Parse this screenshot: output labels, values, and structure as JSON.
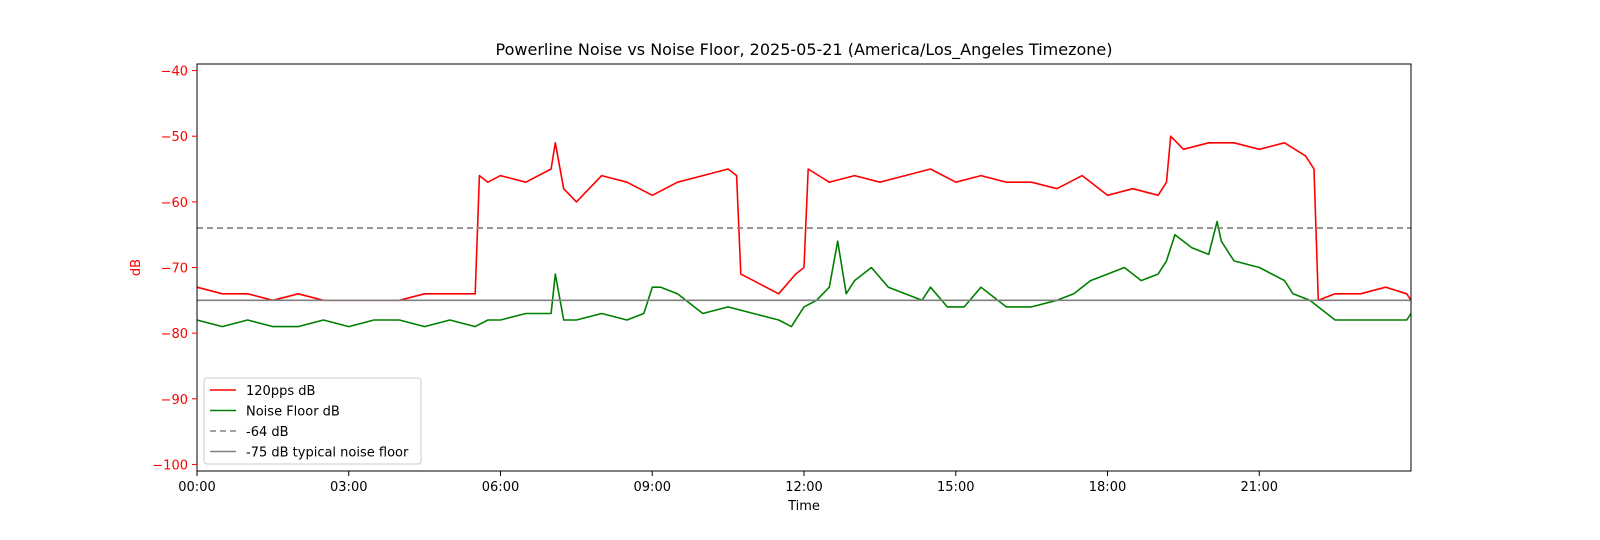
{
  "chart_data": {
    "type": "line",
    "title": "Powerline Noise vs Noise Floor, 2025-05-21 (America/Los_Angeles Timezone)",
    "xlabel": "Time",
    "ylabel": "dB",
    "xlim": [
      "00:00",
      "24:00"
    ],
    "ylim": [
      -101,
      -39
    ],
    "x_ticks": [
      "00:00",
      "03:00",
      "06:00",
      "09:00",
      "12:00",
      "15:00",
      "18:00",
      "21:00"
    ],
    "y_ticks": [
      -40,
      -50,
      -60,
      -70,
      -80,
      -90,
      -100
    ],
    "grid": false,
    "legend_position": "lower-left",
    "series": [
      {
        "name": "120pps dB",
        "color": "#ff0000",
        "style": "solid",
        "x": [
          "00:00",
          "00:30",
          "01:00",
          "01:30",
          "02:00",
          "02:30",
          "03:00",
          "03:30",
          "04:00",
          "04:30",
          "05:00",
          "05:20",
          "05:30",
          "05:35",
          "05:45",
          "06:00",
          "06:30",
          "07:00",
          "07:05",
          "07:15",
          "07:30",
          "08:00",
          "08:30",
          "09:00",
          "09:30",
          "10:00",
          "10:30",
          "10:40",
          "10:45",
          "11:00",
          "11:30",
          "11:50",
          "12:00",
          "12:05",
          "12:30",
          "13:00",
          "13:30",
          "14:00",
          "14:30",
          "15:00",
          "15:30",
          "16:00",
          "16:30",
          "17:00",
          "17:30",
          "18:00",
          "18:30",
          "19:00",
          "19:10",
          "19:15",
          "19:30",
          "20:00",
          "20:30",
          "21:00",
          "21:30",
          "21:55",
          "22:05",
          "22:10",
          "22:30",
          "23:00",
          "23:30",
          "23:55",
          "24:00"
        ],
        "y": [
          -73,
          -74,
          -74,
          -75,
          -74,
          -75,
          -75,
          -75,
          -75,
          -74,
          -74,
          -74,
          -74,
          -56,
          -57,
          -56,
          -57,
          -55,
          -51,
          -58,
          -60,
          -56,
          -57,
          -59,
          -57,
          -56,
          -55,
          -56,
          -71,
          -72,
          -74,
          -71,
          -70,
          -55,
          -57,
          -56,
          -57,
          -56,
          -55,
          -57,
          -56,
          -57,
          -57,
          -58,
          -56,
          -59,
          -58,
          -59,
          -57,
          -50,
          -52,
          -51,
          -51,
          -52,
          -51,
          -53,
          -55,
          -75,
          -74,
          -74,
          -73,
          -74,
          -75
        ]
      },
      {
        "name": "Noise Floor dB",
        "color": "#008000",
        "style": "solid",
        "x": [
          "00:00",
          "00:30",
          "01:00",
          "01:30",
          "02:00",
          "02:30",
          "03:00",
          "03:30",
          "04:00",
          "04:30",
          "05:00",
          "05:30",
          "05:45",
          "06:00",
          "06:30",
          "07:00",
          "07:05",
          "07:15",
          "07:30",
          "08:00",
          "08:30",
          "08:50",
          "09:00",
          "09:10",
          "09:30",
          "10:00",
          "10:30",
          "11:00",
          "11:30",
          "11:45",
          "12:00",
          "12:15",
          "12:30",
          "12:40",
          "12:50",
          "13:00",
          "13:20",
          "13:40",
          "14:00",
          "14:20",
          "14:30",
          "14:50",
          "15:00",
          "15:10",
          "15:30",
          "16:00",
          "16:30",
          "17:00",
          "17:20",
          "17:40",
          "18:00",
          "18:20",
          "18:40",
          "19:00",
          "19:10",
          "19:20",
          "19:40",
          "20:00",
          "20:10",
          "20:15",
          "20:30",
          "21:00",
          "21:30",
          "21:40",
          "22:00",
          "22:10",
          "22:30",
          "23:00",
          "23:30",
          "23:55",
          "24:00"
        ],
        "y": [
          -78,
          -79,
          -78,
          -79,
          -79,
          -78,
          -79,
          -78,
          -78,
          -79,
          -78,
          -79,
          -78,
          -78,
          -77,
          -77,
          -71,
          -78,
          -78,
          -77,
          -78,
          -77,
          -73,
          -73,
          -74,
          -77,
          -76,
          -77,
          -78,
          -79,
          -76,
          -75,
          -73,
          -66,
          -74,
          -72,
          -70,
          -73,
          -74,
          -75,
          -73,
          -76,
          -76,
          -76,
          -73,
          -76,
          -76,
          -75,
          -74,
          -72,
          -71,
          -70,
          -72,
          -71,
          -69,
          -65,
          -67,
          -68,
          -63,
          -66,
          -69,
          -70,
          -72,
          -74,
          -75,
          -76,
          -78,
          -78,
          -78,
          -78,
          -77
        ]
      },
      {
        "name": "-64 dB",
        "color": "#808080",
        "style": "dashed",
        "x": [
          "00:00",
          "24:00"
        ],
        "y": [
          -64,
          -64
        ]
      },
      {
        "name": "-75 dB typical noise floor",
        "color": "#808080",
        "style": "solid",
        "x": [
          "00:00",
          "24:00"
        ],
        "y": [
          -75,
          -75
        ]
      }
    ]
  },
  "colors": {
    "y_axis": "#ff0000",
    "x_axis": "#000000"
  }
}
